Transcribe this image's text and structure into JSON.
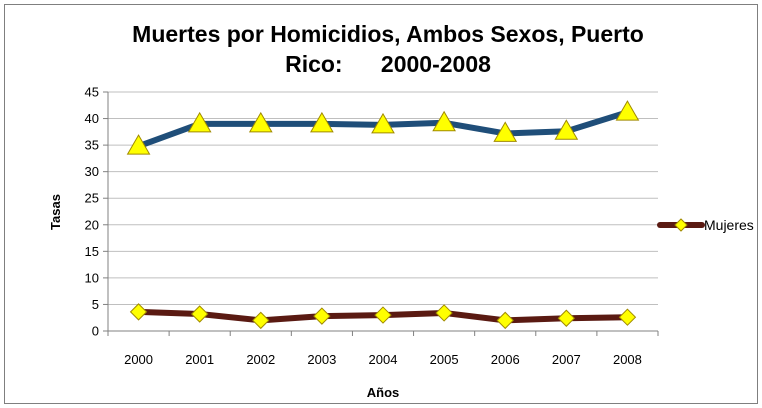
{
  "chart_data": {
    "type": "line",
    "title_line1": "Muertes por Homicidios, Ambos Sexos, Puerto",
    "title_line2": "Rico:      2000-2008",
    "xlabel": "Años",
    "ylabel": "Tasas",
    "categories": [
      "2000",
      "2001",
      "2002",
      "2003",
      "2004",
      "2005",
      "2006",
      "2007",
      "2008"
    ],
    "ylim": [
      0,
      45
    ],
    "yticks": [
      0,
      5,
      10,
      15,
      20,
      25,
      30,
      35,
      40,
      45
    ],
    "grid": true,
    "legend_position": "right",
    "series": [
      {
        "name": "",
        "color": "#1f4e79",
        "marker_color": "#ffff00",
        "values": [
          34.8,
          39.0,
          39.0,
          39.0,
          38.8,
          39.2,
          37.2,
          37.6,
          41.2
        ]
      },
      {
        "name": "Mujeres",
        "color": "#5a1a12",
        "marker_color": "#ffff00",
        "values": [
          3.6,
          3.2,
          2.0,
          2.8,
          3.0,
          3.4,
          2.0,
          2.4,
          2.6
        ]
      }
    ]
  }
}
